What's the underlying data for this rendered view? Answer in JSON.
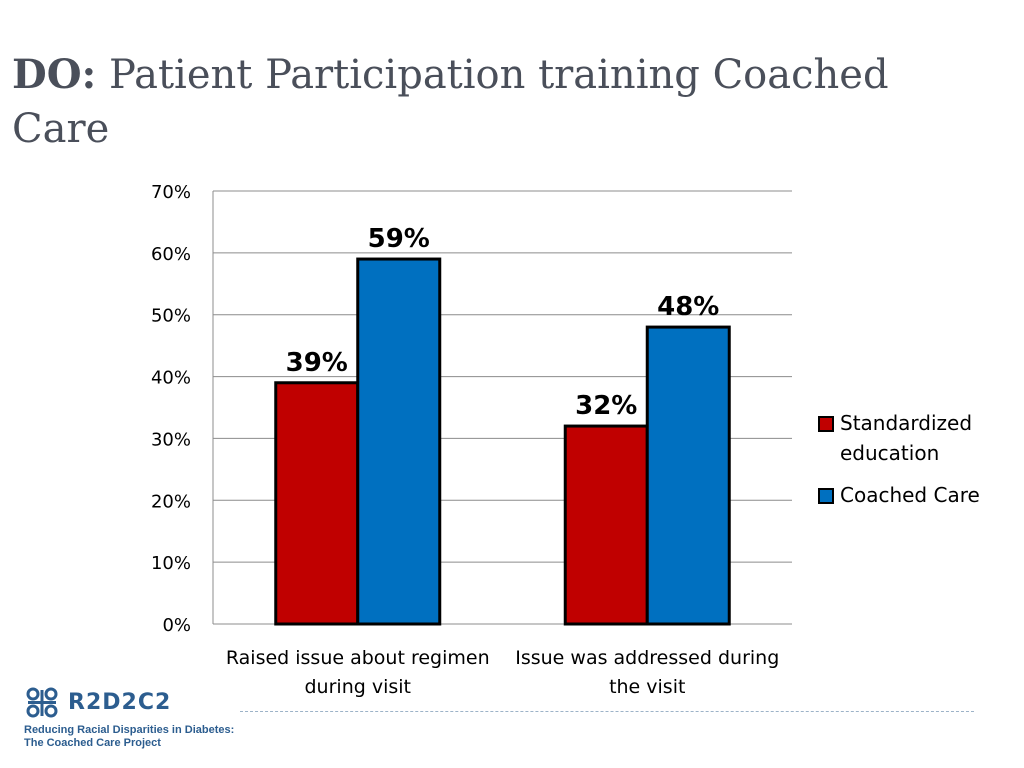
{
  "slide": {
    "title_lead": "DO:",
    "title_rest": "Patient Participation training Coached Care"
  },
  "chart_data": {
    "type": "bar",
    "categories": [
      "Raised issue about regimen during visit",
      "Issue was addressed during the visit"
    ],
    "category_lines": [
      [
        "Raised issue about regimen",
        "during visit"
      ],
      [
        "Issue was addressed during",
        "the visit"
      ]
    ],
    "series": [
      {
        "name": "Standardized education",
        "values": [
          39,
          32
        ],
        "labels": [
          "39%",
          "32%"
        ],
        "color": "#c00000"
      },
      {
        "name": "Coached Care",
        "values": [
          59,
          48
        ],
        "labels": [
          "59%",
          "48%"
        ],
        "color": "#0070c0"
      }
    ],
    "ylim": [
      0,
      70
    ],
    "yticks": [
      "0%",
      "10%",
      "20%",
      "30%",
      "40%",
      "50%",
      "60%",
      "70%"
    ],
    "grid": true,
    "legend_position": "right"
  },
  "legend": {
    "items": [
      {
        "lines": [
          "Standardized",
          "education"
        ],
        "color": "#c00000"
      },
      {
        "lines": [
          "Coached Care"
        ],
        "color": "#0070c0"
      }
    ]
  },
  "logo": {
    "wordmark": "R2D2C2",
    "tagline_1": "Reducing Racial Disparities in Diabetes:",
    "tagline_2": "The Coached Care Project"
  }
}
